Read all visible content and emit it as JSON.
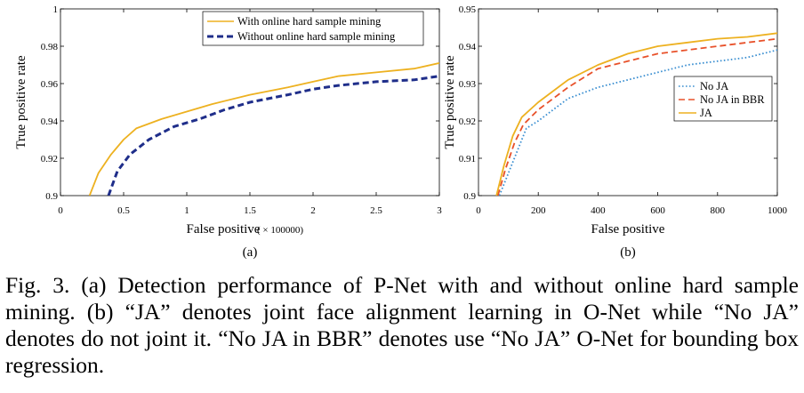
{
  "figure": {
    "caption": "Fig. 3. (a) Detection performance of P-Net with and without online hard sample mining. (b) “JA” denotes joint face alignment learning in O-Net while “No JA” denotes do not joint it. “No JA in BBR” denotes use “No JA” O-Net for bounding box regression."
  },
  "colors": {
    "orange": "#edb120",
    "blue": "#1f2e8a",
    "lightblue": "#3b8fd1",
    "red": "#e8512a"
  },
  "chart_data": [
    {
      "panel_label": "(a)",
      "type": "line",
      "xlabel": "False positive",
      "xlabel_unit": "( × 100000)",
      "ylabel": "True positive rate",
      "xlim": [
        0,
        3
      ],
      "ylim": [
        0.9,
        1
      ],
      "xticks": [
        0,
        0.5,
        1,
        1.5,
        2,
        2.5,
        3
      ],
      "xtick_labels": [
        "0",
        "0.5",
        "1",
        "1.5",
        "2",
        "2.5",
        "3"
      ],
      "yticks": [
        0.9,
        0.92,
        0.94,
        0.96,
        0.98,
        1
      ],
      "ytick_labels": [
        "0.9",
        "0.92",
        "0.94",
        "0.96",
        "0.98",
        "1"
      ],
      "grid": false,
      "legend_position": "top-right",
      "series": [
        {
          "name": "With online hard sample mining",
          "color": "#edb120",
          "style": "solid",
          "x": [
            0.23,
            0.3,
            0.4,
            0.5,
            0.6,
            0.8,
            1.0,
            1.2,
            1.5,
            1.8,
            2.0,
            2.2,
            2.5,
            2.8,
            3.0
          ],
          "y": [
            0.9,
            0.912,
            0.922,
            0.93,
            0.936,
            0.941,
            0.945,
            0.949,
            0.954,
            0.958,
            0.961,
            0.964,
            0.966,
            0.968,
            0.971
          ]
        },
        {
          "name": "Without online hard sample mining",
          "color": "#1f2e8a",
          "style": "dashed",
          "x": [
            0.38,
            0.45,
            0.55,
            0.7,
            0.9,
            1.1,
            1.3,
            1.5,
            1.8,
            2.0,
            2.2,
            2.5,
            2.8,
            3.0
          ],
          "y": [
            0.9,
            0.913,
            0.922,
            0.93,
            0.937,
            0.941,
            0.946,
            0.95,
            0.954,
            0.957,
            0.959,
            0.961,
            0.962,
            0.964
          ]
        }
      ]
    },
    {
      "panel_label": "(b)",
      "type": "line",
      "xlabel": "False positive",
      "ylabel": "True positive rate",
      "xlim": [
        0,
        1000
      ],
      "ylim": [
        0.9,
        0.95
      ],
      "xticks": [
        0,
        200,
        400,
        600,
        800,
        1000
      ],
      "xtick_labels": [
        "0",
        "200",
        "400",
        "600",
        "800",
        "1000"
      ],
      "yticks": [
        0.9,
        0.91,
        0.92,
        0.93,
        0.94,
        0.95
      ],
      "ytick_labels": [
        "0.9",
        "0.91",
        "0.92",
        "0.93",
        "0.94",
        "0.95"
      ],
      "grid": false,
      "legend_position": "right",
      "series": [
        {
          "name": "No JA",
          "color": "#3b8fd1",
          "style": "dotted",
          "x": [
            70,
            100,
            130,
            160,
            200,
            250,
            300,
            400,
            500,
            600,
            700,
            800,
            900,
            1000
          ],
          "y": [
            0.9,
            0.906,
            0.912,
            0.918,
            0.92,
            0.923,
            0.926,
            0.929,
            0.931,
            0.933,
            0.935,
            0.936,
            0.937,
            0.939
          ]
        },
        {
          "name": "No JA in BBR",
          "color": "#e8512a",
          "style": "dashed",
          "x": [
            65,
            90,
            120,
            150,
            200,
            250,
            300,
            400,
            500,
            600,
            700,
            800,
            900,
            1000
          ],
          "y": [
            0.9,
            0.907,
            0.914,
            0.919,
            0.923,
            0.926,
            0.929,
            0.934,
            0.936,
            0.938,
            0.939,
            0.94,
            0.941,
            0.942
          ]
        },
        {
          "name": "JA",
          "color": "#edb120",
          "style": "solid",
          "x": [
            60,
            85,
            115,
            145,
            200,
            250,
            300,
            400,
            500,
            600,
            700,
            800,
            900,
            1000
          ],
          "y": [
            0.9,
            0.908,
            0.916,
            0.921,
            0.925,
            0.928,
            0.931,
            0.935,
            0.938,
            0.94,
            0.941,
            0.942,
            0.9425,
            0.9435
          ]
        }
      ]
    }
  ]
}
